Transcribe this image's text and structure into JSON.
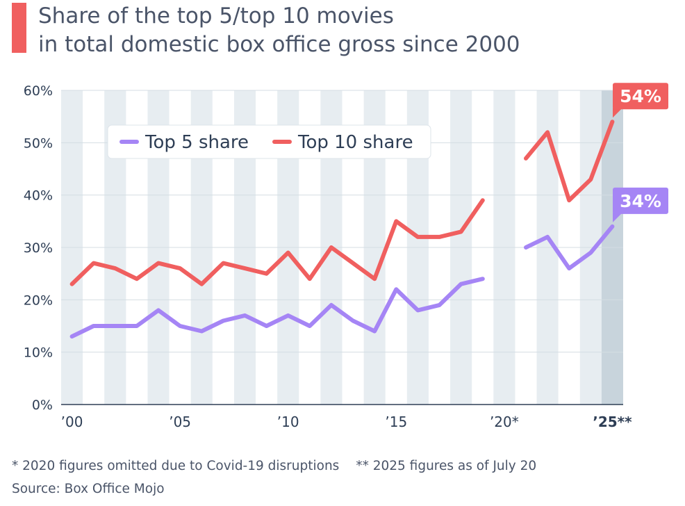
{
  "header": {
    "title_line1": "Share of the top 5/top 10 movies",
    "title_line2": "in total domestic box office gross since 2000",
    "accent_color": "#f05f5f"
  },
  "footer": {
    "note_covid": "* 2020 figures omitted due to Covid-19 disruptions",
    "note_2025": "** 2025 figures as of July 20",
    "source": "Source: Box Office Mojo"
  },
  "chart_data": {
    "type": "line",
    "title": "Share of the top 5/top 10 movies in total domestic box office gross since 2000",
    "xlabel": "",
    "ylabel": "",
    "x": [
      2000,
      2001,
      2002,
      2003,
      2004,
      2005,
      2006,
      2007,
      2008,
      2009,
      2010,
      2011,
      2012,
      2013,
      2014,
      2015,
      2016,
      2017,
      2018,
      2019,
      2020,
      2021,
      2022,
      2023,
      2024,
      2025
    ],
    "xlim": [
      2000,
      2025
    ],
    "ylim": [
      0,
      60
    ],
    "y_ticks": [
      0,
      10,
      20,
      30,
      40,
      50,
      60
    ],
    "y_tick_labels": [
      "0%",
      "10%",
      "20%",
      "30%",
      "40%",
      "50%",
      "60%"
    ],
    "x_ticks": [
      2000,
      2005,
      2010,
      2015,
      2020,
      2025
    ],
    "x_tick_labels": [
      "’00",
      "’05",
      "’10",
      "’15",
      "’20*",
      "’25**"
    ],
    "grid": true,
    "legend_position": "top-left",
    "highlighted_x": 2025,
    "series": [
      {
        "name": "Top 5 share",
        "color": "#a585f5",
        "values": [
          13,
          15,
          15,
          15,
          18,
          15,
          14,
          16,
          17,
          15,
          17,
          15,
          19,
          16,
          14,
          22,
          18,
          19,
          23,
          24,
          null,
          30,
          32,
          26,
          29,
          34
        ],
        "end_label": "34%"
      },
      {
        "name": "Top 10 share",
        "color": "#f05f5f",
        "values": [
          23,
          27,
          26,
          24,
          27,
          26,
          23,
          27,
          26,
          25,
          29,
          24,
          30,
          27,
          24,
          35,
          32,
          32,
          33,
          39,
          null,
          47,
          52,
          39,
          43,
          54
        ],
        "end_label": "54%"
      }
    ]
  }
}
